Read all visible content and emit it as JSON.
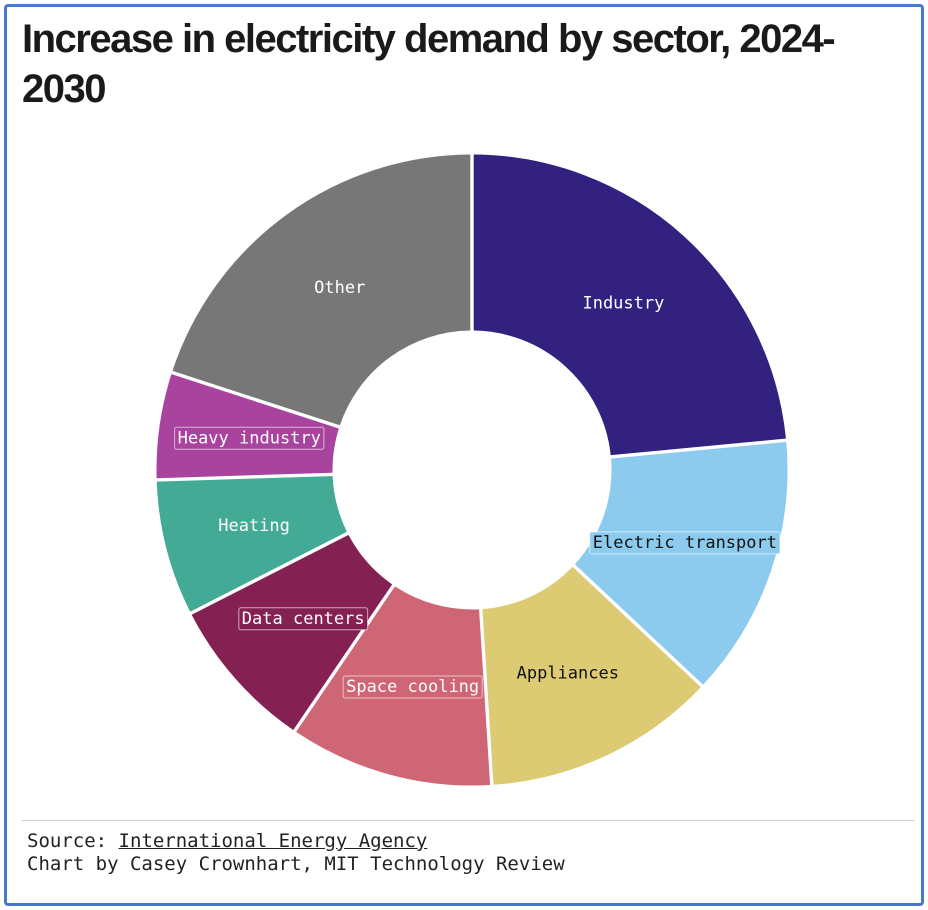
{
  "chart_data": {
    "type": "donut",
    "title": "Increase in electricity demand by sector, 2024-2030",
    "slices": [
      {
        "label": "Industry",
        "value": 23.5,
        "color": "#33217f",
        "text_color": "#ffffff",
        "label_bg": ""
      },
      {
        "label": "Electric transport",
        "value": 13.5,
        "color": "#8ccbee",
        "text_color": "#111111",
        "label_bg": "#8ccbee"
      },
      {
        "label": "Appliances",
        "value": 12.0,
        "color": "#dccb72",
        "text_color": "#111111",
        "label_bg": ""
      },
      {
        "label": "Space cooling",
        "value": 10.5,
        "color": "#cf6675",
        "text_color": "#ffffff",
        "label_bg": "#cf6675"
      },
      {
        "label": "Data centers",
        "value": 8.0,
        "color": "#842152",
        "text_color": "#ffffff",
        "label_bg": "#842152"
      },
      {
        "label": "Heating",
        "value": 7.0,
        "color": "#43aa96",
        "text_color": "#ffffff",
        "label_bg": ""
      },
      {
        "label": "Heavy industry",
        "value": 5.5,
        "color": "#a8449d",
        "text_color": "#ffffff",
        "label_bg": "#a8449d"
      },
      {
        "label": "Other",
        "value": 20.0,
        "color": "#777777",
        "text_color": "#ffffff",
        "label_bg": ""
      }
    ],
    "unit": "",
    "legend": "none"
  },
  "footer": {
    "source_prefix": "Source: ",
    "source_name": "International Energy Agency",
    "credit": "Chart by Casey Crownhart, MIT Technology Review"
  }
}
